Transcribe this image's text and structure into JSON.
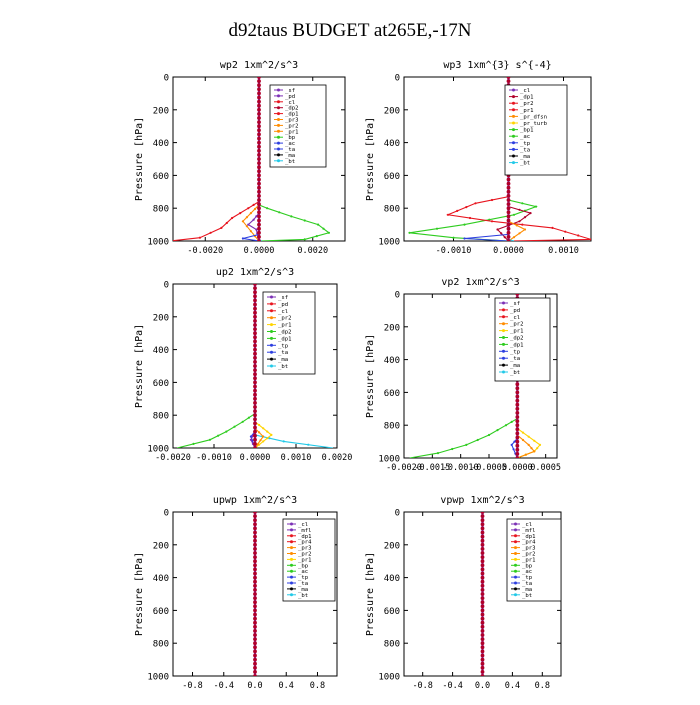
{
  "page": {
    "title": "d92taus  BUDGET at265E,-17N"
  },
  "colors": {
    "axis": "#000000",
    "red": "#e8141e",
    "darkred": "#b0002a",
    "purple": "#7b2fb5",
    "blue": "#2c3ee0",
    "orange": "#ff8c00",
    "yellow": "#ffd400",
    "green": "#2ecc1f",
    "cyan": "#21c9e8",
    "black": "#000000"
  },
  "chart_data": [
    {
      "id": "wp2",
      "type": "line",
      "title": "wp2  1xm^2/s^3",
      "ylabel": "Pressure [hPa]",
      "xlim": [
        -0.0032,
        0.0032
      ],
      "ylim": [
        1000,
        0
      ],
      "xticks": [
        -0.002,
        0.0,
        0.002
      ],
      "xtick_labels": [
        "-0.0020",
        "0.0000",
        "0.0020"
      ],
      "yticks": [
        0,
        200,
        400,
        600,
        800,
        1000
      ],
      "ytick_labels": [
        "0",
        "200",
        "400",
        "600",
        "800",
        "1000"
      ],
      "legend": [
        "_sf",
        "_pd",
        "_cl",
        "_dp2",
        "_dp1",
        "_pr3",
        "_pr2",
        "_pr1",
        "_bp",
        "_ac",
        "_ta",
        "_ma",
        "_bt"
      ],
      "legend_colors": [
        "purple",
        "purple",
        "red",
        "darkred",
        "red",
        "orange",
        "orange",
        "orange",
        "green",
        "blue",
        "blue",
        "black",
        "cyan"
      ],
      "series": [
        {
          "color": "green",
          "points": [
            [
              0.0,
              0
            ],
            [
              0.0,
              780
            ],
            [
              0.0003,
              800
            ],
            [
              0.0012,
              850
            ],
            [
              0.0022,
              900
            ],
            [
              0.0026,
              950
            ],
            [
              0.0017,
              990
            ],
            [
              0.0,
              1000
            ]
          ]
        },
        {
          "color": "red",
          "points": [
            [
              0.0,
              0
            ],
            [
              0.0,
              760
            ],
            [
              -0.0004,
              800
            ],
            [
              -0.001,
              860
            ],
            [
              -0.0014,
              920
            ],
            [
              -0.0022,
              980
            ],
            [
              -0.0033,
              1000
            ]
          ]
        },
        {
          "color": "orange",
          "points": [
            [
              0.0,
              0
            ],
            [
              0.0,
              780
            ],
            [
              -0.0003,
              830
            ],
            [
              -0.0006,
              880
            ],
            [
              -0.0003,
              940
            ],
            [
              0.0,
              1000
            ]
          ]
        },
        {
          "color": "purple",
          "points": [
            [
              0.0,
              0
            ],
            [
              0.0,
              830
            ],
            [
              -0.0002,
              870
            ],
            [
              -0.0004,
              900
            ],
            [
              -0.0001,
              930
            ],
            [
              0.0,
              1000
            ]
          ]
        },
        {
          "color": "blue",
          "points": [
            [
              0.0,
              0
            ],
            [
              0.0,
              960
            ],
            [
              -0.0006,
              985
            ],
            [
              0.0,
              1000
            ]
          ]
        },
        {
          "color": "cyan",
          "points": [
            [
              0.0,
              0
            ],
            [
              0.0,
              990
            ],
            [
              0.0001,
              1000
            ]
          ]
        },
        {
          "color": "darkred",
          "points": [
            [
              0.0,
              0
            ],
            [
              0.0,
              1000
            ]
          ]
        }
      ]
    },
    {
      "id": "wp3",
      "type": "line",
      "title": "wp3  1xm^{3} s^{-4}",
      "ylabel": "Pressure [hPa]",
      "xlim": [
        -0.0019,
        0.0015
      ],
      "ylim": [
        1000,
        0
      ],
      "xticks": [
        -0.001,
        0.0,
        0.001
      ],
      "xtick_labels": [
        "-0.0010",
        "0.0000",
        "0.0010"
      ],
      "yticks": [
        0,
        200,
        400,
        600,
        800,
        1000
      ],
      "ytick_labels": [
        "0",
        "200",
        "400",
        "600",
        "800",
        "1000"
      ],
      "legend": [
        "_cl",
        "_dp1",
        "_pr2",
        "_pr1",
        "_pr_dfsn",
        "_pr_turb",
        "_bp1",
        "_ac",
        "_tp",
        "_ta",
        "_ma",
        "_bt"
      ],
      "legend_colors": [
        "purple",
        "darkred",
        "red",
        "red",
        "orange",
        "yellow",
        "green",
        "green",
        "blue",
        "blue",
        "black",
        "cyan"
      ],
      "series": [
        {
          "color": "green",
          "points": [
            [
              0.0,
              0
            ],
            [
              0.0,
              750
            ],
            [
              0.0005,
              790
            ],
            [
              0.0001,
              840
            ],
            [
              -0.0008,
              900
            ],
            [
              -0.0018,
              950
            ],
            [
              -0.001,
              980
            ],
            [
              0.0,
              1000
            ]
          ]
        },
        {
          "color": "red",
          "points": [
            [
              0.0,
              0
            ],
            [
              0.0,
              730
            ],
            [
              -0.0006,
              770
            ],
            [
              -0.0011,
              840
            ],
            [
              -0.0003,
              880
            ],
            [
              0.0008,
              920
            ],
            [
              0.0015,
              990
            ],
            [
              0.0,
              1000
            ]
          ]
        },
        {
          "color": "darkred",
          "points": [
            [
              0.0,
              0
            ],
            [
              0.0,
              790
            ],
            [
              0.0004,
              830
            ],
            [
              0.0002,
              880
            ],
            [
              -0.0002,
              930
            ],
            [
              0.0,
              1000
            ]
          ]
        },
        {
          "color": "blue",
          "points": [
            [
              0.0,
              0
            ],
            [
              0.0,
              960
            ],
            [
              -0.0008,
              985
            ],
            [
              0.0,
              1000
            ]
          ]
        },
        {
          "color": "orange",
          "points": [
            [
              0.0,
              0
            ],
            [
              0.0,
              880
            ],
            [
              0.0003,
              930
            ],
            [
              0.0,
              1000
            ]
          ]
        },
        {
          "color": "cyan",
          "points": [
            [
              0.0,
              0
            ],
            [
              0.0,
              990
            ],
            [
              0.0001,
              1000
            ]
          ]
        },
        {
          "color": "purple",
          "points": [
            [
              0.0,
              0
            ],
            [
              0.0,
              1000
            ]
          ]
        }
      ]
    },
    {
      "id": "up2",
      "type": "line",
      "title": "up2  1xm^2/s^3",
      "ylabel": "Pressure [hPa]",
      "xlim": [
        -0.002,
        0.002
      ],
      "ylim": [
        1000,
        0
      ],
      "xticks": [
        -0.002,
        -0.001,
        0.0,
        0.001,
        0.002
      ],
      "xtick_labels": [
        "-0.0020",
        "-0.0010",
        "0.0000",
        "0.0010",
        "0.0020"
      ],
      "yticks": [
        0,
        200,
        400,
        600,
        800,
        1000
      ],
      "ytick_labels": [
        "0",
        "200",
        "400",
        "600",
        "800",
        "1000"
      ],
      "legend": [
        "_sf",
        "_pd",
        "_cl",
        "_pr2",
        "_pr1",
        "_dp2",
        "_dp1",
        "_tp",
        "_ta",
        "_ma",
        "_bt"
      ],
      "legend_colors": [
        "purple",
        "red",
        "red",
        "orange",
        "yellow",
        "green",
        "green",
        "blue",
        "blue",
        "black",
        "cyan"
      ],
      "series": [
        {
          "color": "green",
          "points": [
            [
              0.0,
              0
            ],
            [
              0.0,
              790
            ],
            [
              -0.0003,
              840
            ],
            [
              -0.0007,
              900
            ],
            [
              -0.0011,
              950
            ],
            [
              -0.0019,
              1000
            ]
          ]
        },
        {
          "color": "cyan",
          "points": [
            [
              0.0,
              0
            ],
            [
              0.0,
              920
            ],
            [
              0.0007,
              960
            ],
            [
              0.0019,
              1000
            ]
          ]
        },
        {
          "color": "yellow",
          "points": [
            [
              0.0,
              0
            ],
            [
              0.0,
              840
            ],
            [
              0.0002,
              880
            ],
            [
              0.0004,
              920
            ],
            [
              0.0002,
              960
            ],
            [
              0.0,
              1000
            ]
          ]
        },
        {
          "color": "orange",
          "points": [
            [
              0.0,
              0
            ],
            [
              0.0,
              880
            ],
            [
              0.0002,
              930
            ],
            [
              0.0,
              1000
            ]
          ]
        },
        {
          "color": "blue",
          "points": [
            [
              0.0,
              0
            ],
            [
              0.0,
              900
            ],
            [
              -0.0001,
              930
            ],
            [
              0.0,
              1000
            ]
          ]
        },
        {
          "color": "purple",
          "points": [
            [
              0.0,
              0
            ],
            [
              0.0,
              900
            ],
            [
              -0.0001,
              950
            ],
            [
              0.0,
              1000
            ]
          ]
        },
        {
          "color": "red",
          "points": [
            [
              0.0,
              0
            ],
            [
              0.0,
              1000
            ]
          ]
        },
        {
          "color": "darkred",
          "points": [
            [
              0.0,
              0
            ],
            [
              0.0,
              1000
            ]
          ]
        }
      ]
    },
    {
      "id": "vp2",
      "type": "line",
      "title": "vp2  1xm^2/s^3",
      "ylabel": "Pressure [hPa]",
      "xlim": [
        -0.002,
        0.0007
      ],
      "ylim": [
        1000,
        0
      ],
      "xticks": [
        -0.002,
        -0.0015,
        -0.001,
        -0.0005,
        0.0,
        0.0005
      ],
      "xtick_labels": [
        "-0.0020",
        "-0.0015",
        "-0.0010",
        "-0.0005",
        "0.0000",
        "0.0005"
      ],
      "yticks": [
        0,
        200,
        400,
        600,
        800,
        1000
      ],
      "ytick_labels": [
        "0",
        "200",
        "400",
        "600",
        "800",
        "1000"
      ],
      "legend": [
        "_sf",
        "_pd",
        "_cl",
        "_pr2",
        "_pr1",
        "_dp2",
        "_dp1",
        "_tp",
        "_ta",
        "_ma",
        "_bt"
      ],
      "legend_colors": [
        "purple",
        "red",
        "red",
        "orange",
        "yellow",
        "green",
        "green",
        "blue",
        "blue",
        "black",
        "cyan"
      ],
      "series": [
        {
          "color": "green",
          "points": [
            [
              0.0,
              0
            ],
            [
              0.0,
              760
            ],
            [
              -0.0002,
              800
            ],
            [
              -0.0005,
              860
            ],
            [
              -0.0009,
              920
            ],
            [
              -0.0014,
              970
            ],
            [
              -0.0019,
              1000
            ]
          ]
        },
        {
          "color": "yellow",
          "points": [
            [
              0.0,
              0
            ],
            [
              0.0,
              820
            ],
            [
              0.0002,
              870
            ],
            [
              0.0004,
              920
            ],
            [
              0.0003,
              960
            ],
            [
              0.0,
              1000
            ]
          ]
        },
        {
          "color": "orange",
          "points": [
            [
              0.0,
              0
            ],
            [
              0.0,
              860
            ],
            [
              0.0002,
              920
            ],
            [
              0.0003,
              960
            ],
            [
              0.0,
              1000
            ]
          ]
        },
        {
          "color": "blue",
          "points": [
            [
              0.0,
              0
            ],
            [
              0.0,
              880
            ],
            [
              -0.0001,
              920
            ],
            [
              0.0,
              1000
            ]
          ]
        },
        {
          "color": "red",
          "points": [
            [
              0.0,
              0
            ],
            [
              0.0,
              1000
            ]
          ]
        },
        {
          "color": "darkred",
          "points": [
            [
              0.0,
              0
            ],
            [
              0.0,
              1000
            ]
          ]
        }
      ]
    },
    {
      "id": "upwp",
      "type": "line",
      "title": "upwp  1xm^2/s^3",
      "ylabel": "Pressure [hPa]",
      "xlim": [
        -1.05,
        1.05
      ],
      "ylim": [
        1000,
        0
      ],
      "xticks": [
        -0.8,
        -0.4,
        0.0,
        0.4,
        0.8
      ],
      "xtick_labels": [
        "-0.8",
        "-0.4",
        "0.0",
        "0.4",
        "0.8"
      ],
      "yticks": [
        0,
        200,
        400,
        600,
        800,
        1000
      ],
      "ytick_labels": [
        "0",
        "200",
        "400",
        "600",
        "800",
        "1000"
      ],
      "legend": [
        "_cl",
        "_mfl",
        "_dp1",
        "_pr4",
        "_pr3",
        "_pr2",
        "_pr1",
        "_bp",
        "_ac",
        "_tp",
        "_ta",
        "_ma",
        "_bt"
      ],
      "legend_colors": [
        "purple",
        "purple",
        "red",
        "red",
        "orange",
        "orange",
        "yellow",
        "green",
        "green",
        "blue",
        "blue",
        "black",
        "cyan"
      ],
      "series": [
        {
          "color": "red",
          "points": [
            [
              0.0,
              0
            ],
            [
              0.0,
              1000
            ]
          ]
        },
        {
          "color": "purple",
          "points": [
            [
              0.0,
              0
            ],
            [
              0.0,
              1000
            ]
          ]
        }
      ]
    },
    {
      "id": "vpwp",
      "type": "line",
      "title": "vpwp  1xm^2/s^3",
      "ylabel": "Pressure [hPa]",
      "xlim": [
        -1.05,
        1.05
      ],
      "ylim": [
        1000,
        0
      ],
      "xticks": [
        -0.8,
        -0.4,
        0.0,
        0.4,
        0.8
      ],
      "xtick_labels": [
        "-0.8",
        "-0.4",
        "0.0",
        "0.4",
        "0.8"
      ],
      "yticks": [
        0,
        200,
        400,
        600,
        800,
        1000
      ],
      "ytick_labels": [
        "0",
        "200",
        "400",
        "600",
        "800",
        "1000"
      ],
      "legend": [
        "_cl",
        "_mfl",
        "_dp1",
        "_pr4",
        "_pr3",
        "_pr2",
        "_pr1",
        "_bp",
        "_ac",
        "_tp",
        "_ta",
        "_ma",
        "_bt"
      ],
      "legend_colors": [
        "purple",
        "purple",
        "red",
        "red",
        "orange",
        "orange",
        "yellow",
        "green",
        "green",
        "blue",
        "blue",
        "black",
        "cyan"
      ],
      "series": [
        {
          "color": "red",
          "points": [
            [
              0.0,
              0
            ],
            [
              0.0,
              1000
            ]
          ]
        },
        {
          "color": "purple",
          "points": [
            [
              0.0,
              0
            ],
            [
              0.0,
              1000
            ]
          ]
        }
      ]
    }
  ]
}
